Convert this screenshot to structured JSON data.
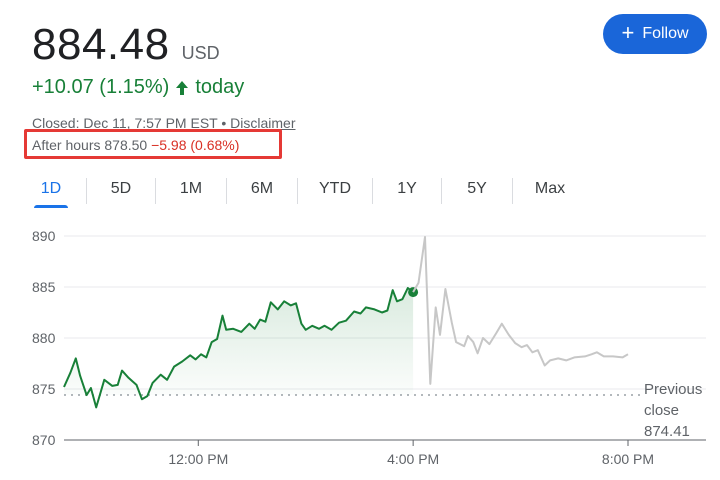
{
  "quote": {
    "price": "884.48",
    "currency": "USD",
    "change": "+10.07 (1.15%)",
    "change_period": "today",
    "status": "Closed: Dec 11, 7:57 PM EST",
    "separator": "•",
    "disclaimer": "Disclaimer",
    "after_hours_label": "After hours 878.50",
    "after_hours_change": "−5.98 (0.68%)"
  },
  "follow_button": {
    "label": "Follow",
    "icon": "plus-icon"
  },
  "tabs": [
    {
      "label": "1D",
      "active": true
    },
    {
      "label": "5D",
      "active": false
    },
    {
      "label": "1M",
      "active": false
    },
    {
      "label": "6M",
      "active": false
    },
    {
      "label": "YTD",
      "active": false
    },
    {
      "label": "1Y",
      "active": false
    },
    {
      "label": "5Y",
      "active": false
    },
    {
      "label": "Max",
      "active": false
    }
  ],
  "colors": {
    "positive": "#188038",
    "negative": "#d93025",
    "accent": "#1a73e8",
    "after_hours_line": "#c7c7c7",
    "highlight_box": "#e53935"
  },
  "chart_data": {
    "type": "line",
    "ylim": [
      870,
      890
    ],
    "yticks": [
      "890",
      "885",
      "880",
      "875",
      "870"
    ],
    "ytick_values": [
      890,
      885,
      880,
      875,
      870
    ],
    "xlim_hours": [
      9.5,
      20.0
    ],
    "xticks": [
      "12:00 PM",
      "4:00 PM",
      "8:00 PM"
    ],
    "xtick_hours": [
      12,
      16,
      20
    ],
    "previous_close": {
      "label_line1": "Previous",
      "label_line2": "close",
      "value": 874.41,
      "value_label": "874.41"
    },
    "series": [
      {
        "session": "regular",
        "color": "#188038",
        "points": [
          [
            9.5,
            875.2
          ],
          [
            9.62,
            876.6
          ],
          [
            9.72,
            878.0
          ],
          [
            9.8,
            876.3
          ],
          [
            9.92,
            874.4
          ],
          [
            10.0,
            875.1
          ],
          [
            10.1,
            873.2
          ],
          [
            10.25,
            875.9
          ],
          [
            10.4,
            875.3
          ],
          [
            10.5,
            875.4
          ],
          [
            10.58,
            876.8
          ],
          [
            10.7,
            876.1
          ],
          [
            10.85,
            875.4
          ],
          [
            10.95,
            874.0
          ],
          [
            11.05,
            874.3
          ],
          [
            11.15,
            875.6
          ],
          [
            11.3,
            876.4
          ],
          [
            11.42,
            875.9
          ],
          [
            11.55,
            877.2
          ],
          [
            11.7,
            877.7
          ],
          [
            11.85,
            878.3
          ],
          [
            11.95,
            877.9
          ],
          [
            12.05,
            878.4
          ],
          [
            12.15,
            878.1
          ],
          [
            12.25,
            879.6
          ],
          [
            12.35,
            879.9
          ],
          [
            12.45,
            882.2
          ],
          [
            12.52,
            880.8
          ],
          [
            12.65,
            880.9
          ],
          [
            12.8,
            880.6
          ],
          [
            12.95,
            881.4
          ],
          [
            13.05,
            880.9
          ],
          [
            13.15,
            881.8
          ],
          [
            13.25,
            881.6
          ],
          [
            13.35,
            883.5
          ],
          [
            13.48,
            882.8
          ],
          [
            13.6,
            883.6
          ],
          [
            13.72,
            883.2
          ],
          [
            13.82,
            883.4
          ],
          [
            13.92,
            881.4
          ],
          [
            14.0,
            880.8
          ],
          [
            14.12,
            881.2
          ],
          [
            14.25,
            880.9
          ],
          [
            14.35,
            881.2
          ],
          [
            14.48,
            880.8
          ],
          [
            14.62,
            881.5
          ],
          [
            14.75,
            881.7
          ],
          [
            14.9,
            882.6
          ],
          [
            15.02,
            882.4
          ],
          [
            15.12,
            883.0
          ],
          [
            15.28,
            882.8
          ],
          [
            15.42,
            882.5
          ],
          [
            15.52,
            882.7
          ],
          [
            15.62,
            884.7
          ],
          [
            15.7,
            883.6
          ],
          [
            15.8,
            883.8
          ],
          [
            15.9,
            884.9
          ],
          [
            16.0,
            884.5
          ]
        ]
      },
      {
        "session": "after_hours",
        "color": "#c7c7c7",
        "points": [
          [
            16.0,
            884.5
          ],
          [
            16.1,
            885.4
          ],
          [
            16.22,
            889.9
          ],
          [
            16.32,
            875.5
          ],
          [
            16.42,
            883.0
          ],
          [
            16.5,
            880.3
          ],
          [
            16.6,
            884.8
          ],
          [
            16.72,
            881.5
          ],
          [
            16.8,
            879.6
          ],
          [
            16.95,
            879.2
          ],
          [
            17.02,
            880.2
          ],
          [
            17.12,
            879.6
          ],
          [
            17.2,
            878.5
          ],
          [
            17.3,
            880.0
          ],
          [
            17.42,
            879.4
          ],
          [
            17.55,
            880.5
          ],
          [
            17.65,
            881.4
          ],
          [
            17.78,
            880.3
          ],
          [
            17.9,
            879.5
          ],
          [
            18.02,
            879.1
          ],
          [
            18.12,
            879.3
          ],
          [
            18.22,
            878.6
          ],
          [
            18.32,
            878.8
          ],
          [
            18.45,
            877.3
          ],
          [
            18.55,
            877.8
          ],
          [
            18.7,
            878.0
          ],
          [
            18.85,
            877.8
          ],
          [
            19.0,
            878.1
          ],
          [
            19.2,
            878.2
          ],
          [
            19.32,
            878.4
          ],
          [
            19.42,
            878.6
          ],
          [
            19.55,
            878.2
          ],
          [
            19.72,
            878.2
          ],
          [
            19.9,
            878.1
          ],
          [
            20.0,
            878.4
          ]
        ]
      }
    ]
  }
}
